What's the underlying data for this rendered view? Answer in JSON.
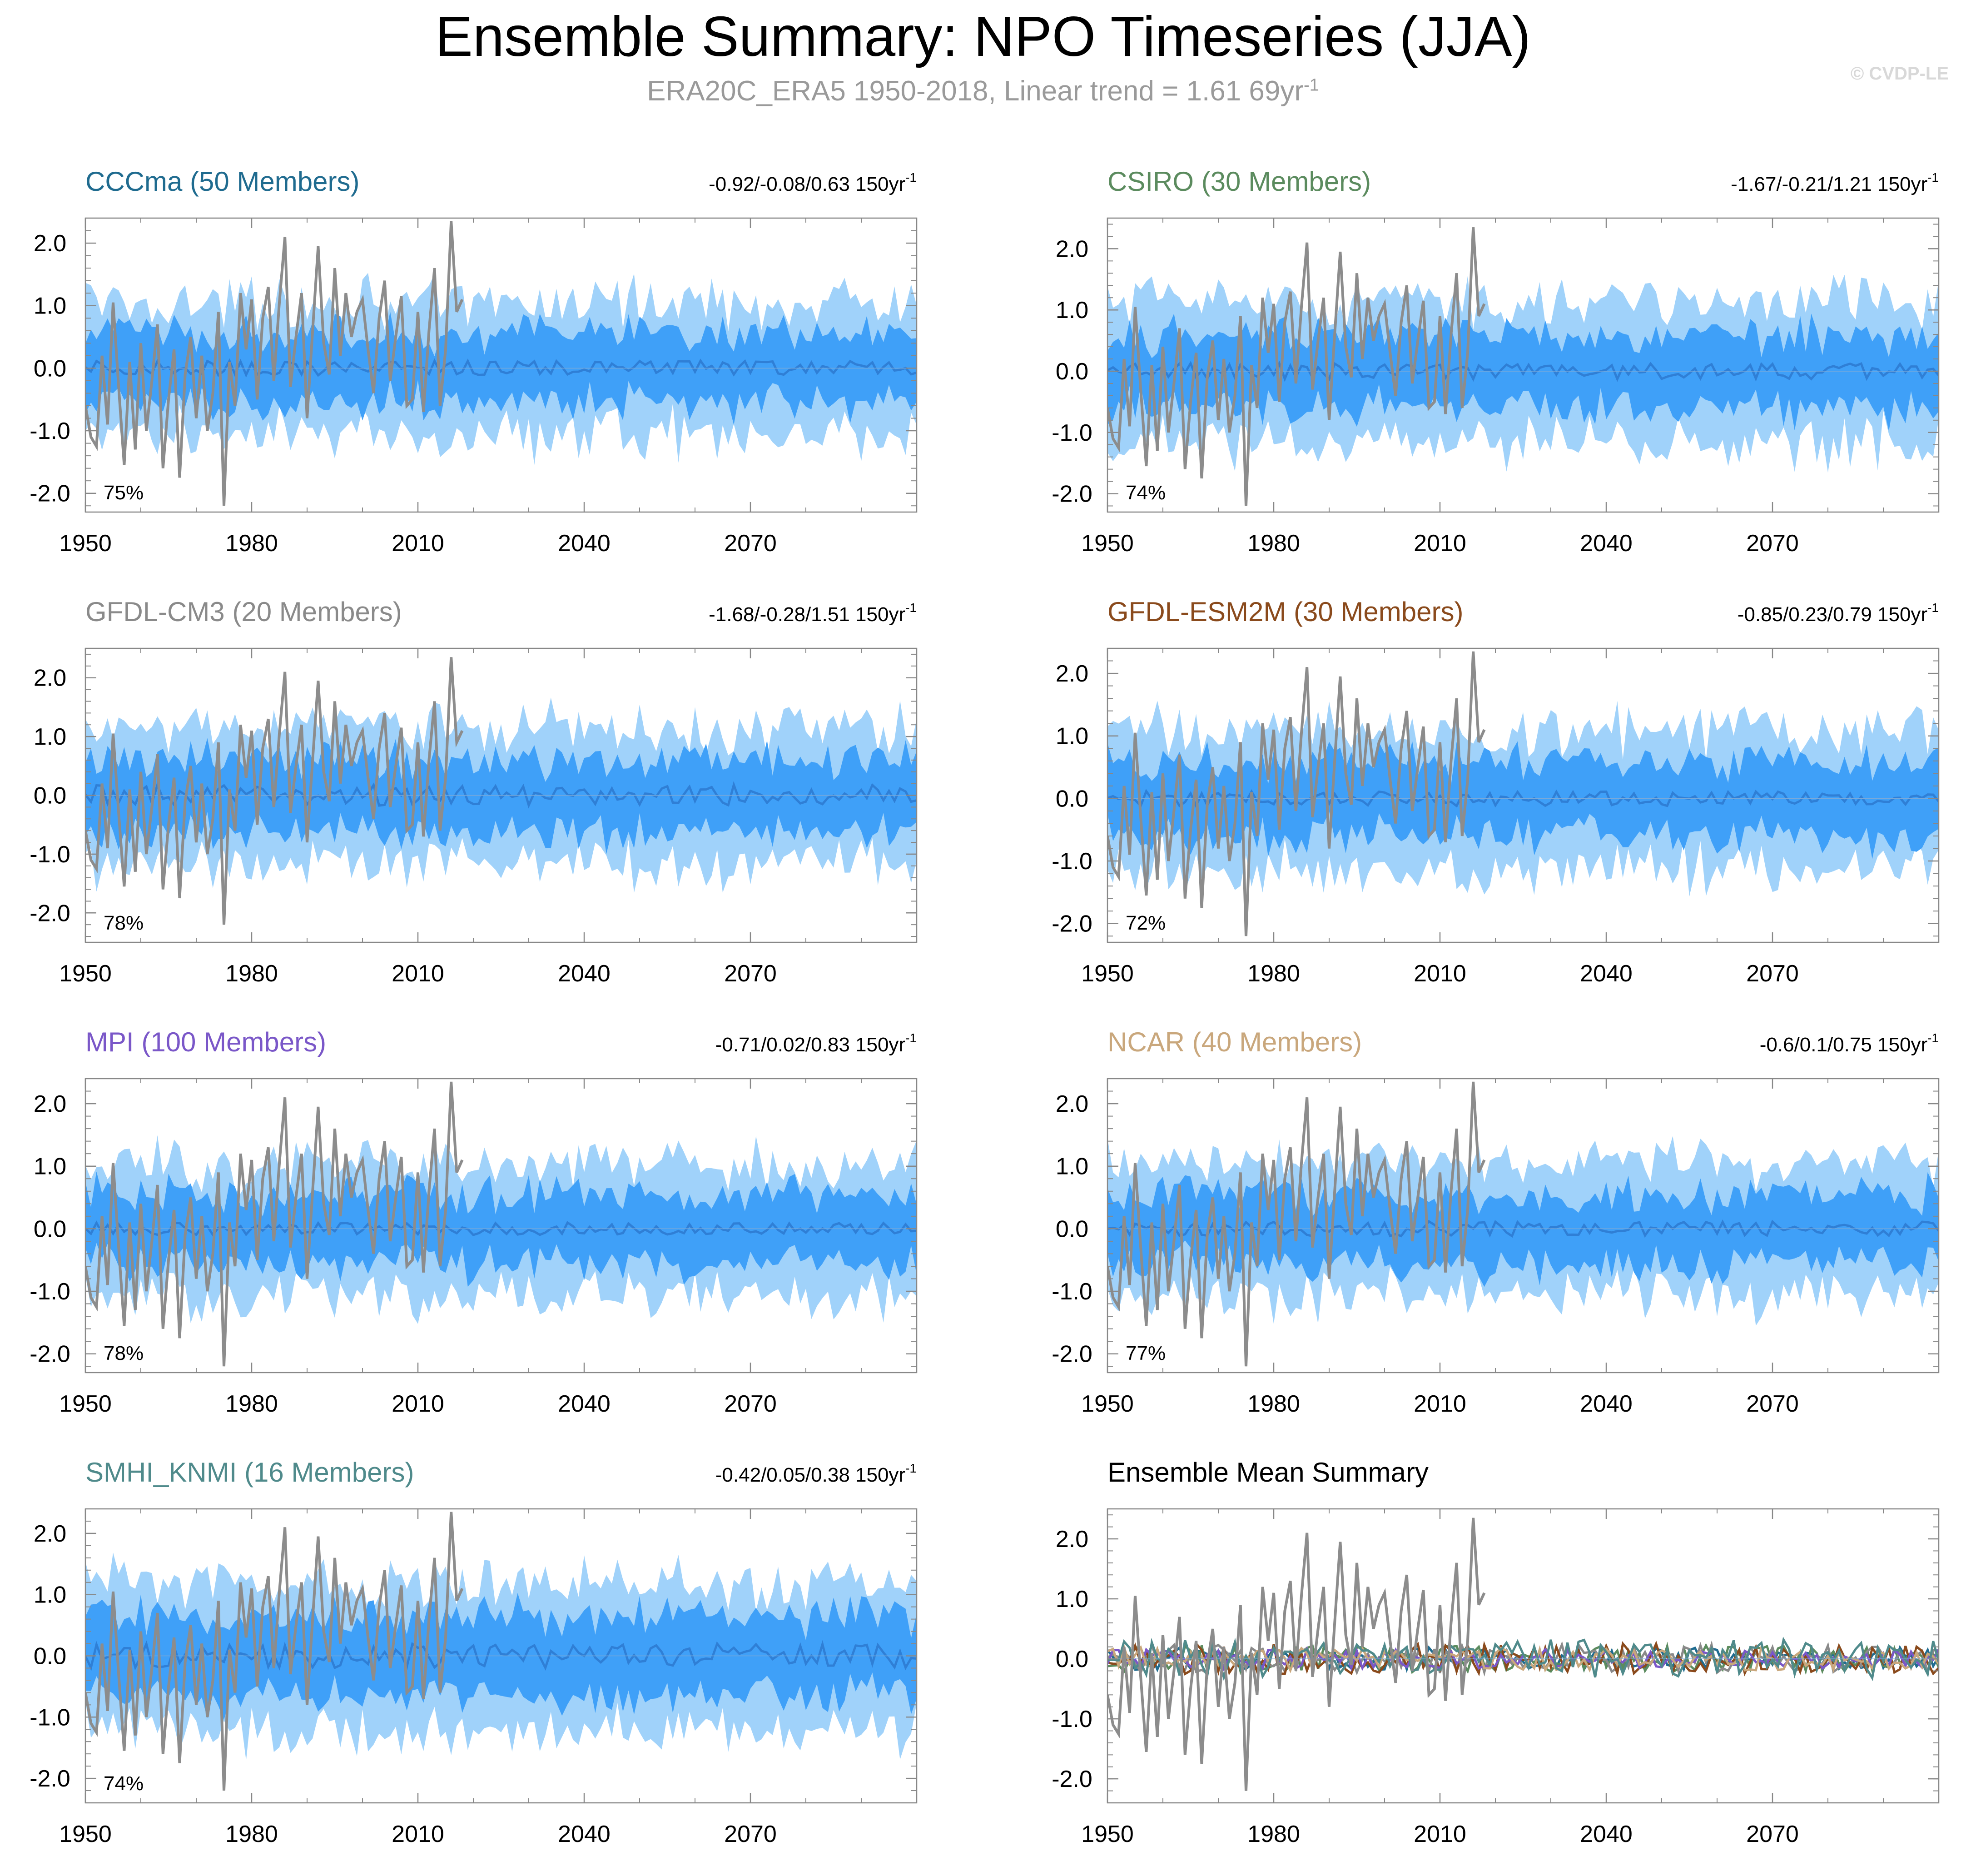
{
  "title": "Ensemble Summary: NPO Timeseries (JJA)",
  "subtitle": {
    "text": "ERA20C_ERA5 1950-2018, Linear trend = 1.61 69yr",
    "superscript": "-1"
  },
  "copyright": "© CVDP-LE",
  "colors": {
    "outer_band": "#a0d2fa",
    "inner_band": "#3fa0f8",
    "ensemble_mean": "#2f7fd6",
    "observations": "#8c8c8c",
    "axis": "#888888"
  },
  "chart_data": [
    {
      "type": "area",
      "panel": "CCCma",
      "title": "CCCma (50 Members)",
      "title_color": "#1f6b8f",
      "trend_text": "-0.92/-0.08/0.63 150yr",
      "trend_sup": "-1",
      "percent_label": "75%",
      "xlim": [
        1950,
        2100
      ],
      "ylim": [
        -2.3,
        2.4
      ],
      "xticks": [
        "1950",
        "1980",
        "2010",
        "2040",
        "2070"
      ],
      "yticks": [
        "2.0",
        "1.0",
        "0.0",
        "-1.0",
        "-2.0"
      ],
      "series": [
        {
          "name": "10-90% member range",
          "half_width": 1.05
        },
        {
          "name": "25-75% member range",
          "half_width": 0.55
        },
        {
          "name": "ensemble mean",
          "amplitude": 0.12
        },
        {
          "name": "ERA20C_ERA5 observations",
          "years": [
            1950,
            2018
          ]
        }
      ]
    },
    {
      "type": "area",
      "panel": "CSIRO",
      "title": "CSIRO (30 Members)",
      "title_color": "#5b8b5e",
      "trend_text": "-1.67/-0.21/1.21 150yr",
      "trend_sup": "-1",
      "percent_label": "74%",
      "xlim": [
        1950,
        2100
      ],
      "ylim": [
        -2.3,
        2.5
      ],
      "xticks": [
        "1950",
        "1980",
        "2010",
        "2040",
        "2070"
      ],
      "yticks": [
        "2.0",
        "1.0",
        "0.0",
        "-1.0",
        "-2.0"
      ],
      "series": [
        {
          "name": "10-90% member range",
          "half_width": 1.15
        },
        {
          "name": "25-75% member range",
          "half_width": 0.6
        },
        {
          "name": "ensemble mean",
          "amplitude": 0.13
        },
        {
          "name": "ERA20C_ERA5 observations",
          "years": [
            1950,
            2018
          ]
        }
      ]
    },
    {
      "type": "area",
      "panel": "GFDL-CM3",
      "title": "GFDL-CM3 (20 Members)",
      "title_color": "#8a8a8a",
      "trend_text": "-1.68/-0.28/1.51 150yr",
      "trend_sup": "-1",
      "percent_label": "78%",
      "xlim": [
        1950,
        2100
      ],
      "ylim": [
        -2.5,
        2.5
      ],
      "xticks": [
        "1950",
        "1980",
        "2010",
        "2040",
        "2070"
      ],
      "yticks": [
        "2.0",
        "1.0",
        "0.0",
        "-1.0",
        "-2.0"
      ],
      "series": [
        {
          "name": "10-90% member range",
          "half_width": 1.15
        },
        {
          "name": "25-75% member range",
          "half_width": 0.62
        },
        {
          "name": "ensemble mean",
          "amplitude": 0.18
        },
        {
          "name": "ERA20C_ERA5 observations",
          "years": [
            1950,
            2018
          ]
        }
      ]
    },
    {
      "type": "area",
      "panel": "GFDL-ESM2M",
      "title": "GFDL-ESM2M (30 Members)",
      "title_color": "#8a4a1c",
      "trend_text": "-0.85/0.23/0.79 150yr",
      "trend_sup": "-1",
      "percent_label": "72%",
      "xlim": [
        1950,
        2100
      ],
      "ylim": [
        -2.3,
        2.4
      ],
      "xticks": [
        "1950",
        "1980",
        "2010",
        "2040",
        "2070"
      ],
      "yticks": [
        "2.0",
        "1.0",
        "0.0",
        "-1.0",
        "-2.0"
      ],
      "series": [
        {
          "name": "10-90% member range",
          "half_width": 1.1
        },
        {
          "name": "25-75% member range",
          "half_width": 0.58
        },
        {
          "name": "ensemble mean",
          "amplitude": 0.12
        },
        {
          "name": "ERA20C_ERA5 observations",
          "years": [
            1950,
            2018
          ]
        }
      ]
    },
    {
      "type": "area",
      "panel": "MPI",
      "title": "MPI (100 Members)",
      "title_color": "#7a57c8",
      "trend_text": "-0.71/0.02/0.83 150yr",
      "trend_sup": "-1",
      "percent_label": "78%",
      "xlim": [
        1950,
        2100
      ],
      "ylim": [
        -2.3,
        2.4
      ],
      "xticks": [
        "1950",
        "1980",
        "2010",
        "2040",
        "2070"
      ],
      "yticks": [
        "2.0",
        "1.0",
        "0.0",
        "-1.0",
        "-2.0"
      ],
      "series": [
        {
          "name": "10-90% member range",
          "half_width": 1.05
        },
        {
          "name": "25-75% member range",
          "half_width": 0.55
        },
        {
          "name": "ensemble mean",
          "amplitude": 0.1
        },
        {
          "name": "ERA20C_ERA5 observations",
          "years": [
            1950,
            2018
          ]
        }
      ]
    },
    {
      "type": "area",
      "panel": "NCAR",
      "title": "NCAR (40 Members)",
      "title_color": "#c9a77c",
      "trend_text": "-0.6/0.1/0.75 150yr",
      "trend_sup": "-1",
      "percent_label": "77%",
      "xlim": [
        1950,
        2100
      ],
      "ylim": [
        -2.3,
        2.4
      ],
      "xticks": [
        "1950",
        "1980",
        "2010",
        "2040",
        "2070"
      ],
      "yticks": [
        "2.0",
        "1.0",
        "0.0",
        "-1.0",
        "-2.0"
      ],
      "series": [
        {
          "name": "10-90% member range",
          "half_width": 1.05
        },
        {
          "name": "25-75% member range",
          "half_width": 0.55
        },
        {
          "name": "ensemble mean",
          "amplitude": 0.12
        },
        {
          "name": "ERA20C_ERA5 observations",
          "years": [
            1950,
            2018
          ]
        }
      ]
    },
    {
      "type": "area",
      "panel": "SMHI_KNMI",
      "title": "SMHI_KNMI (16 Members)",
      "title_color": "#4f8a8b",
      "trend_text": "-0.42/0.05/0.38 150yr",
      "trend_sup": "-1",
      "percent_label": "74%",
      "xlim": [
        1950,
        2100
      ],
      "ylim": [
        -2.4,
        2.4
      ],
      "xticks": [
        "1950",
        "1980",
        "2010",
        "2040",
        "2070"
      ],
      "yticks": [
        "2.0",
        "1.0",
        "0.0",
        "-1.0",
        "-2.0"
      ],
      "series": [
        {
          "name": "10-90% member range",
          "half_width": 1.2
        },
        {
          "name": "25-75% member range",
          "half_width": 0.65
        },
        {
          "name": "ensemble mean",
          "amplitude": 0.2
        },
        {
          "name": "ERA20C_ERA5 observations",
          "years": [
            1950,
            2018
          ]
        }
      ]
    },
    {
      "type": "line",
      "panel": "Ensemble Mean Summary",
      "title": "Ensemble Mean Summary",
      "title_color": "#000000",
      "xlim": [
        1950,
        2100
      ],
      "ylim": [
        -2.4,
        2.5
      ],
      "xticks": [
        "1950",
        "1980",
        "2010",
        "2040",
        "2070"
      ],
      "yticks": [
        "2.0",
        "1.0",
        "0.0",
        "-1.0",
        "-2.0"
      ],
      "series": [
        {
          "name": "CCCma",
          "color": "#1f6b8f",
          "amplitude": 0.12
        },
        {
          "name": "CSIRO",
          "color": "#5b8b5e",
          "amplitude": 0.14
        },
        {
          "name": "GFDL-CM3",
          "color": "#8a8a8a",
          "amplitude": 0.15
        },
        {
          "name": "GFDL-ESM2M",
          "color": "#8a4a1c",
          "amplitude": 0.16
        },
        {
          "name": "MPI",
          "color": "#7a57c8",
          "amplitude": 0.1
        },
        {
          "name": "NCAR",
          "color": "#c9a77c",
          "amplitude": 0.12
        },
        {
          "name": "SMHI_KNMI",
          "color": "#4f8a8b",
          "amplitude": 0.2
        },
        {
          "name": "ERA20C_ERA5 observations",
          "color": "#8c8c8c",
          "years": [
            1950,
            2018
          ]
        }
      ]
    }
  ],
  "observations_era20c_era5": {
    "years": [
      1950,
      2018
    ],
    "values": [
      -0.6,
      -1.1,
      -1.25,
      0.2,
      -0.9,
      1.05,
      -0.3,
      -1.55,
      0.1,
      -1.3,
      0.4,
      -1.0,
      -0.2,
      0.7,
      -1.6,
      -0.5,
      0.3,
      -1.75,
      -0.1,
      0.5,
      -0.8,
      0.2,
      -1.0,
      -0.4,
      0.9,
      -2.2,
      0.1,
      -0.6,
      1.2,
      0.3,
      1.1,
      -0.5,
      0.8,
      1.3,
      -0.2,
      1.05,
      2.1,
      -0.3,
      0.5,
      1.2,
      -0.8,
      0.6,
      1.95,
      0.4,
      -0.1,
      1.6,
      0.2,
      1.2,
      0.5,
      0.9,
      1.1,
      0.3,
      -0.4,
      0.8,
      1.4,
      -0.2,
      0.5,
      1.15,
      -0.6,
      -0.5,
      0.9,
      -0.7,
      0.6,
      1.6,
      -0.6,
      0.3,
      2.35,
      0.9,
      1.1
    ]
  }
}
